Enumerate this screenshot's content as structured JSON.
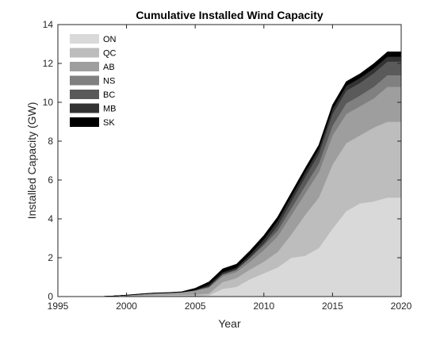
{
  "chart_data": {
    "type": "area",
    "stacked": true,
    "title": "Cumulative Installed Wind Capacity",
    "xlabel": "Year",
    "ylabel": "Installed Capacity (GW)",
    "xlim": [
      1995,
      2020
    ],
    "ylim": [
      0,
      14
    ],
    "xticks": [
      1995,
      2000,
      2005,
      2010,
      2015,
      2020
    ],
    "yticks": [
      0,
      2,
      4,
      6,
      8,
      10,
      12,
      14
    ],
    "grid": false,
    "legend_position": "top-left",
    "x": [
      1998,
      1999,
      2000,
      2001,
      2002,
      2003,
      2004,
      2005,
      2006,
      2007,
      2008,
      2009,
      2010,
      2011,
      2012,
      2013,
      2014,
      2015,
      2016,
      2017,
      2018,
      2019,
      2020
    ],
    "series": [
      {
        "name": "ON",
        "color": "#d9d9d9",
        "values": [
          0,
          0,
          0.01,
          0.01,
          0.02,
          0.02,
          0.02,
          0.02,
          0.06,
          0.4,
          0.5,
          0.9,
          1.2,
          1.5,
          2.0,
          2.1,
          2.5,
          3.5,
          4.4,
          4.8,
          4.9,
          5.1,
          5.1
        ]
      },
      {
        "name": "QC",
        "color": "#bdbdbd",
        "values": [
          0,
          0.01,
          0.02,
          0.05,
          0.06,
          0.07,
          0.07,
          0.08,
          0.1,
          0.35,
          0.45,
          0.5,
          0.6,
          0.8,
          1.2,
          2.1,
          2.6,
          3.3,
          3.5,
          3.5,
          3.8,
          3.9,
          3.9
        ]
      },
      {
        "name": "AB",
        "color": "#9e9e9e",
        "values": [
          0,
          0.02,
          0.04,
          0.06,
          0.08,
          0.09,
          0.12,
          0.2,
          0.3,
          0.3,
          0.32,
          0.4,
          0.6,
          0.8,
          1.0,
          1.1,
          1.3,
          1.5,
          1.5,
          1.5,
          1.5,
          1.8,
          1.8
        ]
      },
      {
        "name": "NS",
        "color": "#808080",
        "values": [
          0,
          0,
          0,
          0,
          0.01,
          0.01,
          0.02,
          0.03,
          0.05,
          0.1,
          0.12,
          0.2,
          0.25,
          0.3,
          0.35,
          0.4,
          0.45,
          0.5,
          0.55,
          0.55,
          0.6,
          0.6,
          0.6
        ]
      },
      {
        "name": "BC",
        "color": "#5a5a5a",
        "values": [
          0,
          0,
          0,
          0,
          0,
          0,
          0,
          0,
          0,
          0,
          0,
          0.02,
          0.1,
          0.25,
          0.35,
          0.45,
          0.5,
          0.6,
          0.65,
          0.65,
          0.7,
          0.7,
          0.7
        ]
      },
      {
        "name": "MB",
        "color": "#333333",
        "values": [
          0,
          0,
          0,
          0,
          0,
          0,
          0,
          0,
          0.1,
          0.1,
          0.1,
          0.15,
          0.2,
          0.25,
          0.25,
          0.25,
          0.25,
          0.25,
          0.25,
          0.25,
          0.25,
          0.25,
          0.25
        ]
      },
      {
        "name": "SK",
        "color": "#000000",
        "values": [
          0,
          0,
          0.01,
          0.02,
          0.02,
          0.02,
          0.02,
          0.1,
          0.15,
          0.18,
          0.18,
          0.2,
          0.2,
          0.2,
          0.2,
          0.2,
          0.2,
          0.22,
          0.22,
          0.22,
          0.24,
          0.25,
          0.25
        ]
      }
    ]
  }
}
